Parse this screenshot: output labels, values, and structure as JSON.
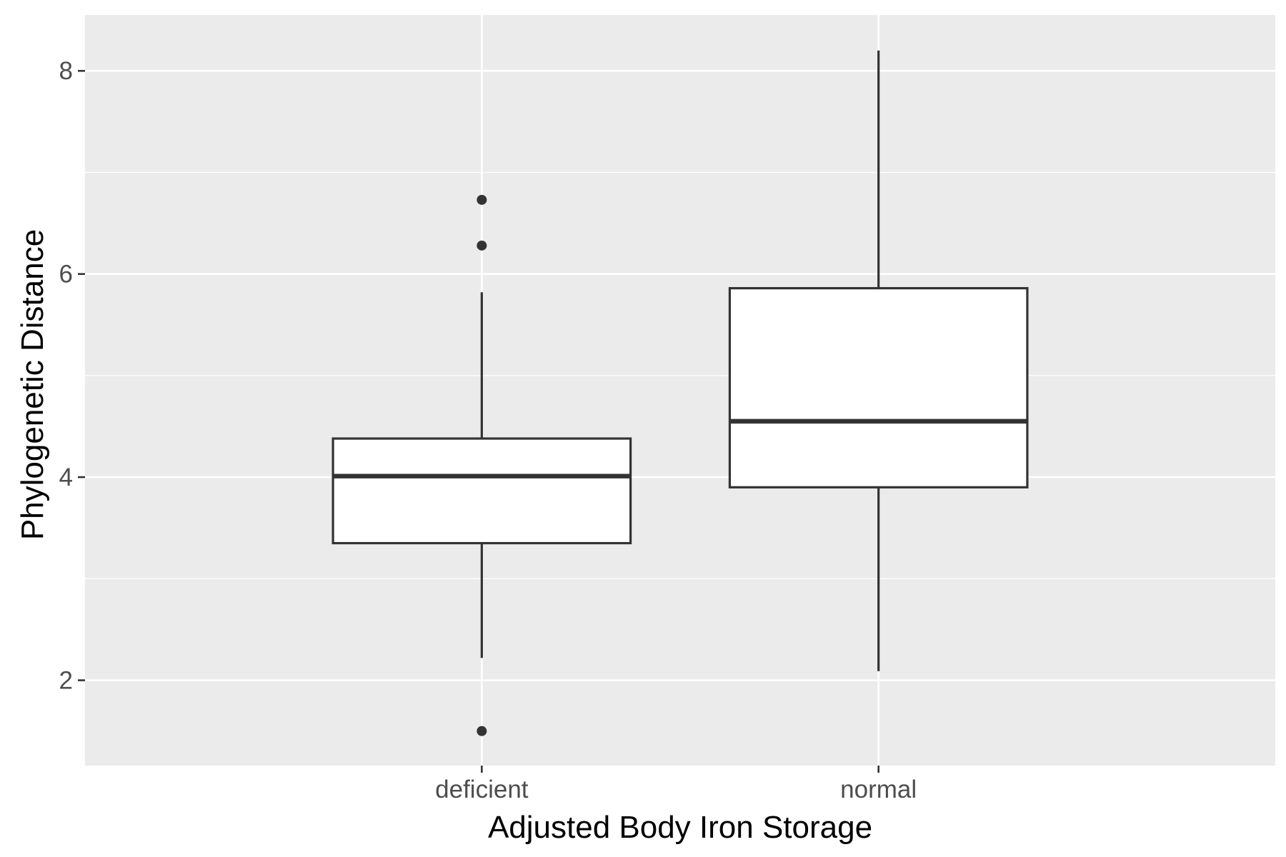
{
  "chart_data": {
    "type": "boxplot",
    "title": "",
    "xlabel": "Adjusted Body Iron Storage",
    "ylabel": "Phylogenetic Distance",
    "categories": [
      "deficient",
      "normal"
    ],
    "y_ticks": [
      2,
      4,
      6,
      8
    ],
    "y_tick_labels": [
      "2",
      "4",
      "6",
      "8"
    ],
    "ylim": [
      1.16,
      8.55
    ],
    "grid": true,
    "legend": "none",
    "boxes": [
      {
        "category": "deficient",
        "whisker_low": 2.22,
        "q1": 3.35,
        "median": 4.01,
        "q3": 4.38,
        "whisker_high": 5.82,
        "outliers": [
          6.73,
          6.28,
          1.5
        ]
      },
      {
        "category": "normal",
        "whisker_low": 2.09,
        "q1": 3.9,
        "median": 4.55,
        "q3": 5.86,
        "whisker_high": 8.2,
        "outliers": []
      }
    ],
    "colors": {
      "panel_background": "#ebebeb",
      "grid_major": "#ffffff",
      "grid_minor": "#ffffff",
      "box_fill": "#ffffff",
      "box_line": "#333333",
      "tick_label": "#4d4d4d",
      "axis_title": "#000000"
    }
  }
}
